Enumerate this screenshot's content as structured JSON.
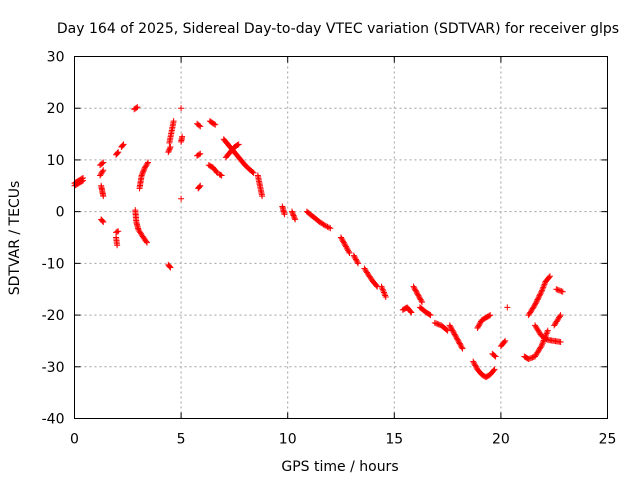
{
  "chart_data": {
    "type": "scatter",
    "title": "Day 164 of 2025, Sidereal Day-to-day VTEC variation (SDTVAR) for receiver glps",
    "xlabel": "GPS time / hours",
    "ylabel": "SDTVAR / TECUs",
    "xlim": [
      0,
      25
    ],
    "ylim": [
      -40,
      30
    ],
    "xticks": [
      0,
      5,
      10,
      15,
      20,
      25
    ],
    "yticks": [
      -40,
      -30,
      -20,
      -10,
      0,
      10,
      20,
      30
    ],
    "xtick_labels": [
      "0",
      "5",
      "10",
      "15",
      "20",
      "25"
    ],
    "ytick_labels": [
      "-40",
      "-30",
      "-20",
      "-10",
      "0",
      "10",
      "20",
      "30"
    ],
    "grid": true,
    "marker": "+",
    "color": "#ff0000",
    "segments": [
      {
        "x": [
          0.0,
          0.2,
          0.4
        ],
        "y": [
          5.5,
          6.0,
          6.5
        ]
      },
      {
        "x": [
          0.0,
          0.2,
          0.4
        ],
        "y": [
          5.0,
          5.5,
          6.0
        ]
      },
      {
        "x": [
          1.2,
          1.35
        ],
        "y": [
          9.0,
          9.5
        ]
      },
      {
        "x": [
          1.2,
          1.35
        ],
        "y": [
          7.0,
          8.0
        ]
      },
      {
        "x": [
          1.25,
          1.3,
          1.35
        ],
        "y": [
          5.0,
          4.0,
          3.0
        ]
      },
      {
        "x": [
          1.25,
          1.35
        ],
        "y": [
          -1.5,
          -2.0
        ]
      },
      {
        "x": [
          1.95,
          2.05
        ],
        "y": [
          -4.0,
          -3.8
        ]
      },
      {
        "x": [
          1.95,
          2.0
        ],
        "y": [
          -5.0,
          -6.5
        ]
      },
      {
        "x": [
          1.95,
          2.05
        ],
        "y": [
          11.0,
          11.5
        ]
      },
      {
        "x": [
          2.2,
          2.3
        ],
        "y": [
          12.5,
          13.0
        ]
      },
      {
        "x": [
          2.8,
          2.95
        ],
        "y": [
          19.8,
          20.2
        ]
      },
      {
        "x": [
          2.85,
          2.9,
          3.0,
          3.2,
          3.4
        ],
        "y": [
          0.3,
          -2.0,
          -3.5,
          -4.8,
          -6.0
        ]
      },
      {
        "x": [
          3.05,
          3.15,
          3.3,
          3.45
        ],
        "y": [
          4.5,
          7.0,
          8.5,
          9.5
        ]
      },
      {
        "x": [
          4.4,
          4.5
        ],
        "y": [
          -10.3,
          -10.8
        ]
      },
      {
        "x": [
          4.4,
          4.5
        ],
        "y": [
          11.5,
          12.5
        ]
      },
      {
        "x": [
          4.45,
          4.65
        ],
        "y": [
          13.3,
          17.5
        ]
      },
      {
        "x": [
          5.0,
          5.05
        ],
        "y": [
          13.5,
          14.5
        ]
      },
      {
        "x": [
          5.0
        ],
        "y": [
          20.0
        ]
      },
      {
        "x": [
          5.0
        ],
        "y": [
          2.5
        ]
      },
      {
        "x": [
          5.8,
          5.9
        ],
        "y": [
          4.5,
          5.0
        ]
      },
      {
        "x": [
          5.75,
          5.9
        ],
        "y": [
          10.8,
          11.2
        ]
      },
      {
        "x": [
          5.75,
          5.9
        ],
        "y": [
          17.0,
          16.5
        ]
      },
      {
        "x": [
          6.35,
          6.6
        ],
        "y": [
          17.5,
          16.8
        ]
      },
      {
        "x": [
          6.3,
          6.5,
          6.7
        ],
        "y": [
          9.0,
          8.5,
          7.5
        ]
      },
      {
        "x": [
          6.8,
          6.9
        ],
        "y": [
          7.2,
          7.0
        ]
      },
      {
        "x": [
          7.0,
          7.2,
          7.4,
          7.6,
          7.8,
          8.0,
          8.2,
          8.4
        ],
        "y": [
          14.0,
          13.0,
          12.0,
          11.0,
          10.0,
          9.0,
          8.2,
          7.5
        ]
      },
      {
        "x": [
          7.1,
          7.3,
          7.5,
          7.7
        ],
        "y": [
          10.5,
          11.5,
          12.5,
          13.0
        ]
      },
      {
        "x": [
          8.6,
          8.7,
          8.8
        ],
        "y": [
          7.0,
          5.0,
          3.0
        ]
      },
      {
        "x": [
          9.75,
          9.85
        ],
        "y": [
          1.0,
          -0.5
        ]
      },
      {
        "x": [
          10.2,
          10.35
        ],
        "y": [
          0.0,
          -1.5
        ]
      },
      {
        "x": [
          10.9,
          11.2,
          11.5,
          11.8,
          12.0
        ],
        "y": [
          0.0,
          -1.0,
          -2.0,
          -2.8,
          -3.2
        ]
      },
      {
        "x": [
          12.5,
          12.7,
          12.9
        ],
        "y": [
          -5.0,
          -6.5,
          -8.0
        ]
      },
      {
        "x": [
          13.1,
          13.3
        ],
        "y": [
          -8.5,
          -10.0
        ]
      },
      {
        "x": [
          13.6,
          13.8,
          14.0,
          14.2
        ],
        "y": [
          -11.0,
          -12.3,
          -13.5,
          -14.5
        ]
      },
      {
        "x": [
          14.4,
          14.6
        ],
        "y": [
          -14.5,
          -16.5
        ]
      },
      {
        "x": [
          15.4,
          15.6,
          15.8
        ],
        "y": [
          -19.0,
          -18.5,
          -19.5
        ]
      },
      {
        "x": [
          15.9,
          16.1,
          16.3
        ],
        "y": [
          -14.5,
          -16.0,
          -17.5
        ]
      },
      {
        "x": [
          16.2,
          16.5,
          16.7
        ],
        "y": [
          -18.5,
          -19.5,
          -20.0
        ]
      },
      {
        "x": [
          16.9,
          17.2,
          17.5
        ],
        "y": [
          -21.5,
          -22.0,
          -23.0
        ]
      },
      {
        "x": [
          17.6,
          17.8,
          18.0,
          18.2
        ],
        "y": [
          -22.0,
          -23.5,
          -25.0,
          -26.5
        ]
      },
      {
        "x": [
          18.7,
          18.9,
          19.1,
          19.3,
          19.5,
          19.7
        ],
        "y": [
          -29.0,
          -30.5,
          -31.5,
          -32.0,
          -31.5,
          -30.5
        ]
      },
      {
        "x": [
          18.9,
          19.1,
          19.3,
          19.5
        ],
        "y": [
          -22.5,
          -21.0,
          -20.5,
          -20.0
        ]
      },
      {
        "x": [
          19.6,
          19.75
        ],
        "y": [
          -27.5,
          -28.0
        ]
      },
      {
        "x": [
          20.0,
          20.2
        ],
        "y": [
          -26.0,
          -25.0
        ]
      },
      {
        "x": [
          20.3
        ],
        "y": [
          -18.5
        ]
      },
      {
        "x": [
          21.1,
          21.3,
          21.6,
          21.9,
          22.2
        ],
        "y": [
          -28.0,
          -28.5,
          -28.0,
          -26.0,
          -23.0
        ]
      },
      {
        "x": [
          21.3,
          21.6,
          21.9,
          22.1,
          22.3
        ],
        "y": [
          -20.0,
          -18.0,
          -15.5,
          -13.5,
          -12.5
        ]
      },
      {
        "x": [
          21.6,
          21.9,
          22.2,
          22.5,
          22.8
        ],
        "y": [
          -22.0,
          -24.0,
          -24.8,
          -25.0,
          -25.2
        ]
      },
      {
        "x": [
          22.5,
          22.8
        ],
        "y": [
          -22.0,
          -20.0
        ]
      },
      {
        "x": [
          22.6,
          22.9
        ],
        "y": [
          -15.0,
          -15.5
        ]
      }
    ]
  }
}
